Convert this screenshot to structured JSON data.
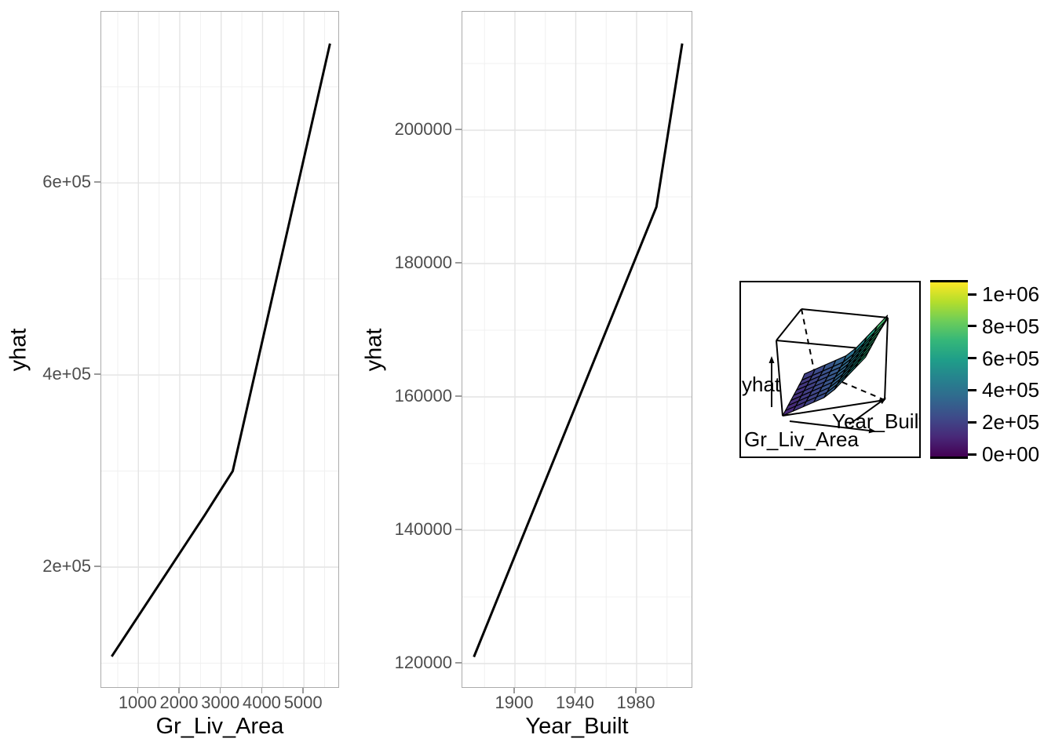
{
  "panel_style": {
    "background": "#FFFFFF",
    "panel_border": "#ABABAB",
    "grid_major": "#E4E4E4",
    "grid_minor": "#F0F0F0",
    "tick_mark_color": "#9A9A9A",
    "tick_label_color": "#4D4D4D",
    "axis_title_color": "#000000"
  },
  "chart_data": [
    {
      "type": "line",
      "panel": "left",
      "xlabel": "Gr_Liv_Area",
      "ylabel": "yhat",
      "x": [
        355,
        1900,
        2600,
        3280,
        5630
      ],
      "y": [
        107000,
        208000,
        254000,
        300000,
        745000
      ],
      "xlim": [
        110,
        5875
      ],
      "ylim": [
        73000,
        778000
      ],
      "x_major_ticks": [
        1000,
        2000,
        3000,
        4000,
        5000
      ],
      "x_tick_labels": [
        "1000",
        "2000",
        "3000",
        "4000",
        "5000"
      ],
      "x_minor_ticks": [
        500,
        1500,
        2500,
        3500,
        4500,
        5500
      ],
      "y_major_ticks": [
        200000,
        400000,
        600000
      ],
      "y_tick_labels": [
        "2e+05",
        "4e+05",
        "6e+05"
      ],
      "y_minor_ticks": [
        100000,
        300000,
        500000,
        700000
      ],
      "line_color": "#000000",
      "grid": true,
      "legend": "none"
    },
    {
      "type": "line",
      "panel": "middle",
      "xlabel": "Year_Built",
      "ylabel": "yhat",
      "x": [
        1873,
        1993,
        2010
      ],
      "y": [
        121000,
        188500,
        213000
      ],
      "xlim": [
        1865,
        2016
      ],
      "ylim": [
        116000,
        218000
      ],
      "x_major_ticks": [
        1900,
        1940,
        1980
      ],
      "x_tick_labels": [
        "1900",
        "1940",
        "1980"
      ],
      "x_minor_ticks": [
        1880,
        1920,
        1960,
        2000
      ],
      "y_major_ticks": [
        120000,
        140000,
        160000,
        180000,
        200000
      ],
      "y_tick_labels": [
        "120000",
        "140000",
        "160000",
        "180000",
        "200000"
      ],
      "y_minor_ticks": [
        130000,
        150000,
        170000,
        190000,
        210000
      ],
      "line_color": "#000000",
      "grid": true,
      "legend": "none"
    },
    {
      "type": "surface",
      "panel": "right",
      "xlabel": "Gr_Liv_Area",
      "ylabel": "Year_Built",
      "zlabel": "yhat",
      "fx_profile": [
        0,
        0.059,
        0.118,
        0.177,
        0.237,
        0.359,
        0.529,
        0.7,
        0.87
      ],
      "fy_profile": [
        0,
        0.014,
        0.027,
        0.041,
        0.054,
        0.068,
        0.082,
        0.095,
        0.13
      ],
      "colormap": "viridis",
      "colorbar": {
        "tick_labels": [
          "0e+00",
          "2e+05",
          "4e+05",
          "6e+05",
          "8e+05",
          "1e+06"
        ],
        "tick_values": [
          0,
          200000,
          400000,
          600000,
          800000,
          1000000
        ],
        "range": [
          -30000,
          1090000
        ],
        "colors": [
          "#440154",
          "#482878",
          "#3E4A89",
          "#31688E",
          "#26828E",
          "#1F9E89",
          "#35B779",
          "#6DCD59",
          "#B4DE2C",
          "#FDE725"
        ]
      }
    }
  ]
}
